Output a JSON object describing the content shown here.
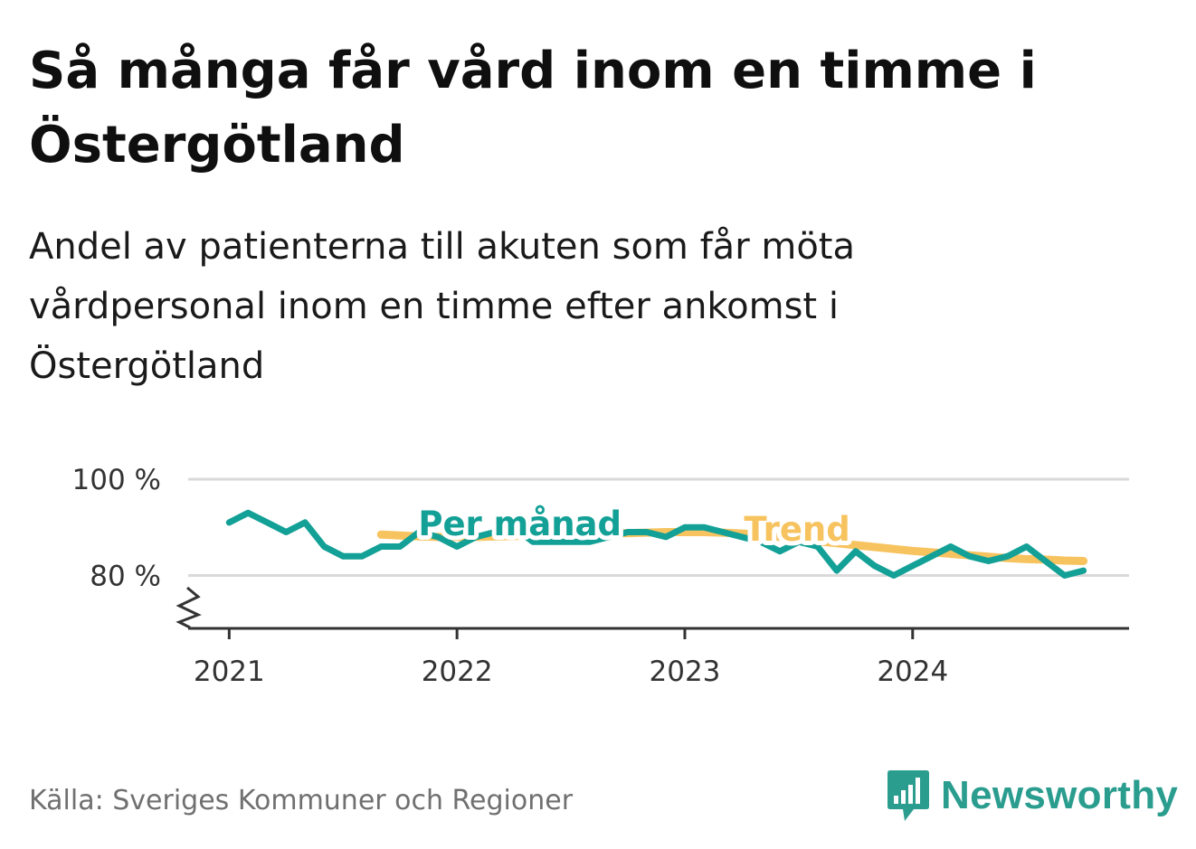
{
  "title": "Så många får vård inom en timme i Östergötland",
  "subtitle": "Andel av patienterna till akuten som får möta vårdpersonal inom en timme efter ankomst i Östergötland",
  "source": "Källa: Sveriges Kommuner och Regioner",
  "brand": {
    "name": "Newsworthy",
    "icon": "newsworthy-logo-icon",
    "color": "#2a9d8f"
  },
  "chart_data": {
    "type": "line",
    "title": "",
    "xlabel": "",
    "ylabel": "",
    "x_ticks": [
      "2021",
      "2022",
      "2023",
      "2024"
    ],
    "x_range": [
      2020.82,
      2024.95
    ],
    "y_ticks": [
      {
        "value": 100,
        "label": "100 %"
      },
      {
        "value": 80,
        "label": "80 %"
      }
    ],
    "ylim": [
      69,
      100
    ],
    "y_axis_break": true,
    "grid": true,
    "series": [
      {
        "name": "Per månad",
        "color": "#13a096",
        "x": [
          2021.0,
          2021.083,
          2021.167,
          2021.25,
          2021.333,
          2021.417,
          2021.5,
          2021.583,
          2021.667,
          2021.75,
          2021.833,
          2021.917,
          2022.0,
          2022.083,
          2022.167,
          2022.25,
          2022.333,
          2022.417,
          2022.5,
          2022.583,
          2022.667,
          2022.75,
          2022.833,
          2022.917,
          2023.0,
          2023.083,
          2023.167,
          2023.25,
          2023.333,
          2023.417,
          2023.5,
          2023.583,
          2023.667,
          2023.75,
          2023.833,
          2023.917,
          2024.0,
          2024.083,
          2024.167,
          2024.25,
          2024.333,
          2024.417,
          2024.5,
          2024.583,
          2024.667,
          2024.75
        ],
        "values": [
          91,
          93,
          91,
          89,
          91,
          86,
          84,
          84,
          86,
          86,
          89,
          88,
          86,
          88,
          89,
          90,
          87,
          87,
          87,
          87,
          88,
          89,
          89,
          88,
          90,
          90,
          89,
          88,
          87,
          85,
          87,
          86,
          81,
          85,
          82,
          80,
          82,
          84,
          86,
          84,
          83,
          84,
          86,
          83,
          80,
          81
        ]
      },
      {
        "name": "Trend",
        "color": "#f7c35f",
        "x": [
          2021.667,
          2021.75,
          2021.833,
          2021.917,
          2022.0,
          2022.083,
          2022.167,
          2022.25,
          2022.333,
          2022.417,
          2022.5,
          2022.583,
          2022.667,
          2022.75,
          2022.833,
          2022.917,
          2023.0,
          2023.083,
          2023.167,
          2023.25,
          2023.333,
          2023.417,
          2023.5,
          2023.583,
          2023.667,
          2023.75,
          2023.833,
          2023.917,
          2024.0,
          2024.083,
          2024.167,
          2024.25,
          2024.333,
          2024.417,
          2024.5,
          2024.583,
          2024.667,
          2024.75
        ],
        "values": [
          88.5,
          88.3,
          88.1,
          88.0,
          88.0,
          88.0,
          88.1,
          88.2,
          88.3,
          88.4,
          88.5,
          88.6,
          88.7,
          88.8,
          88.9,
          89.0,
          89.0,
          89.0,
          88.9,
          88.7,
          88.4,
          88.0,
          87.6,
          87.1,
          86.7,
          86.3,
          85.9,
          85.5,
          85.1,
          84.8,
          84.5,
          84.2,
          83.9,
          83.6,
          83.4,
          83.3,
          83.1,
          83.0
        ]
      }
    ]
  }
}
